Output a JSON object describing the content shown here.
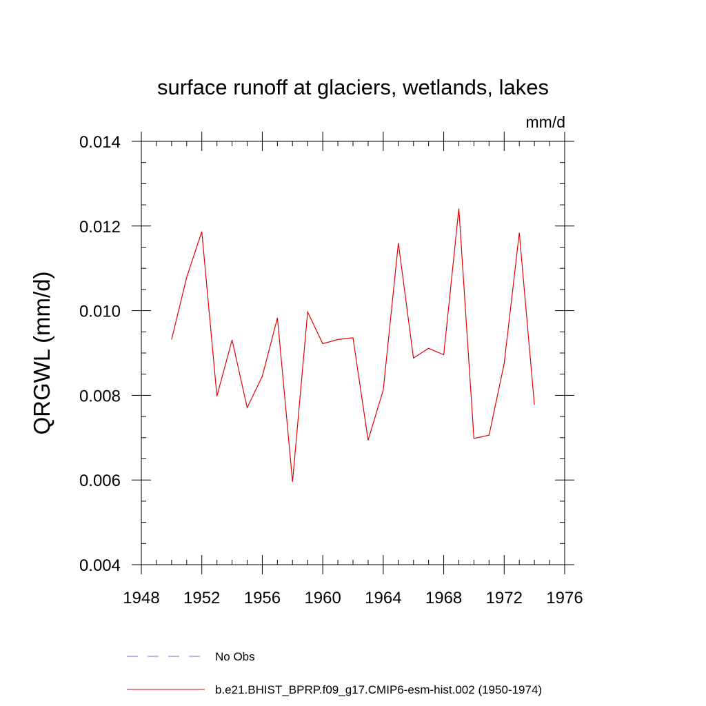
{
  "chart_data": {
    "type": "line",
    "title": "surface runoff at glaciers, wetlands, lakes",
    "units_label": "mm/d",
    "xlabel": "",
    "ylabel": "QRGWL  (mm/d)",
    "xlim": [
      1948,
      1976
    ],
    "ylim": [
      0.004,
      0.014
    ],
    "x_ticks": [
      "1948",
      "1952",
      "1956",
      "1960",
      "1964",
      "1968",
      "1972",
      "1976"
    ],
    "y_ticks": [
      "0.004",
      "0.006",
      "0.008",
      "0.010",
      "0.012",
      "0.014"
    ],
    "grid": false,
    "legend_position": "bottom",
    "legend": [
      {
        "label": "No Obs",
        "color": "#6a6ad0",
        "dash": true
      },
      {
        "label": "b.e21.BHIST_BPRP.f09_g17.CMIP6-esm-hist.002 (1950-1974)",
        "color": "#e00000",
        "dash": false
      }
    ],
    "series": [
      {
        "name": "b.e21.BHIST_BPRP.f09_g17.CMIP6-esm-hist.002 (1950-1974)",
        "color": "#e00000",
        "x": [
          1950,
          1951,
          1952,
          1953,
          1954,
          1955,
          1956,
          1957,
          1958,
          1959,
          1960,
          1961,
          1962,
          1963,
          1964,
          1965,
          1966,
          1967,
          1968,
          1969,
          1970,
          1971,
          1972,
          1973,
          1974
        ],
        "y": [
          0.00932,
          0.01079,
          0.01187,
          0.00798,
          0.00931,
          0.00771,
          0.00845,
          0.00983,
          0.00596,
          0.00997,
          0.00922,
          0.00932,
          0.00936,
          0.00694,
          0.00813,
          0.0116,
          0.00888,
          0.00911,
          0.00896,
          0.01241,
          0.00698,
          0.00706,
          0.00875,
          0.01184,
          0.00778
        ]
      }
    ]
  }
}
